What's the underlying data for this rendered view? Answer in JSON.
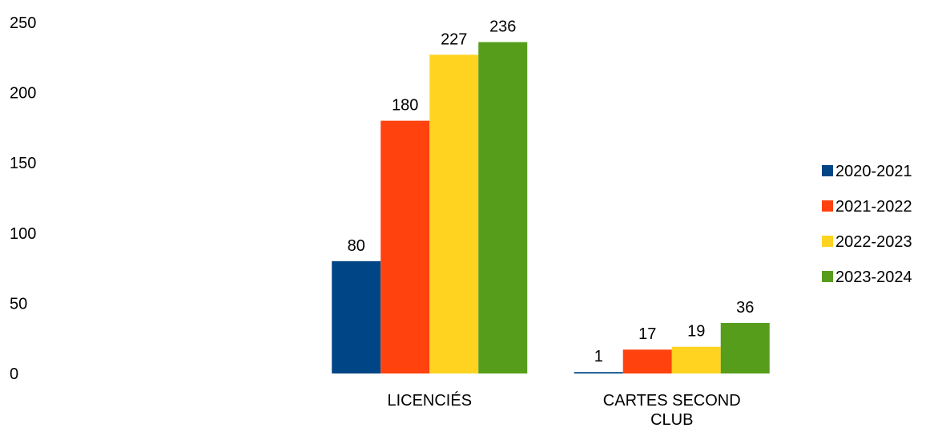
{
  "chart_data": {
    "type": "bar",
    "categories": [
      "LICENCIÉS",
      "CARTES SECOND CLUB"
    ],
    "category_lines": [
      [
        "LICENCIÉS"
      ],
      [
        "CARTES SECOND",
        "CLUB"
      ]
    ],
    "series": [
      {
        "name": "2020-2021",
        "values": [
          80,
          1
        ],
        "color": "#004586"
      },
      {
        "name": "2021-2022",
        "values": [
          180,
          17
        ],
        "color": "#ff420e"
      },
      {
        "name": "2022-2023",
        "values": [
          227,
          19
        ],
        "color": "#ffd320"
      },
      {
        "name": "2023-2024",
        "values": [
          236,
          36
        ],
        "color": "#579d1c"
      }
    ],
    "ylim": [
      0,
      250
    ],
    "yticks": [
      0,
      50,
      100,
      150,
      200,
      250
    ],
    "grid": false,
    "legend_position": "right",
    "data_labels": true,
    "title": "",
    "xlabel": "",
    "ylabel": ""
  }
}
